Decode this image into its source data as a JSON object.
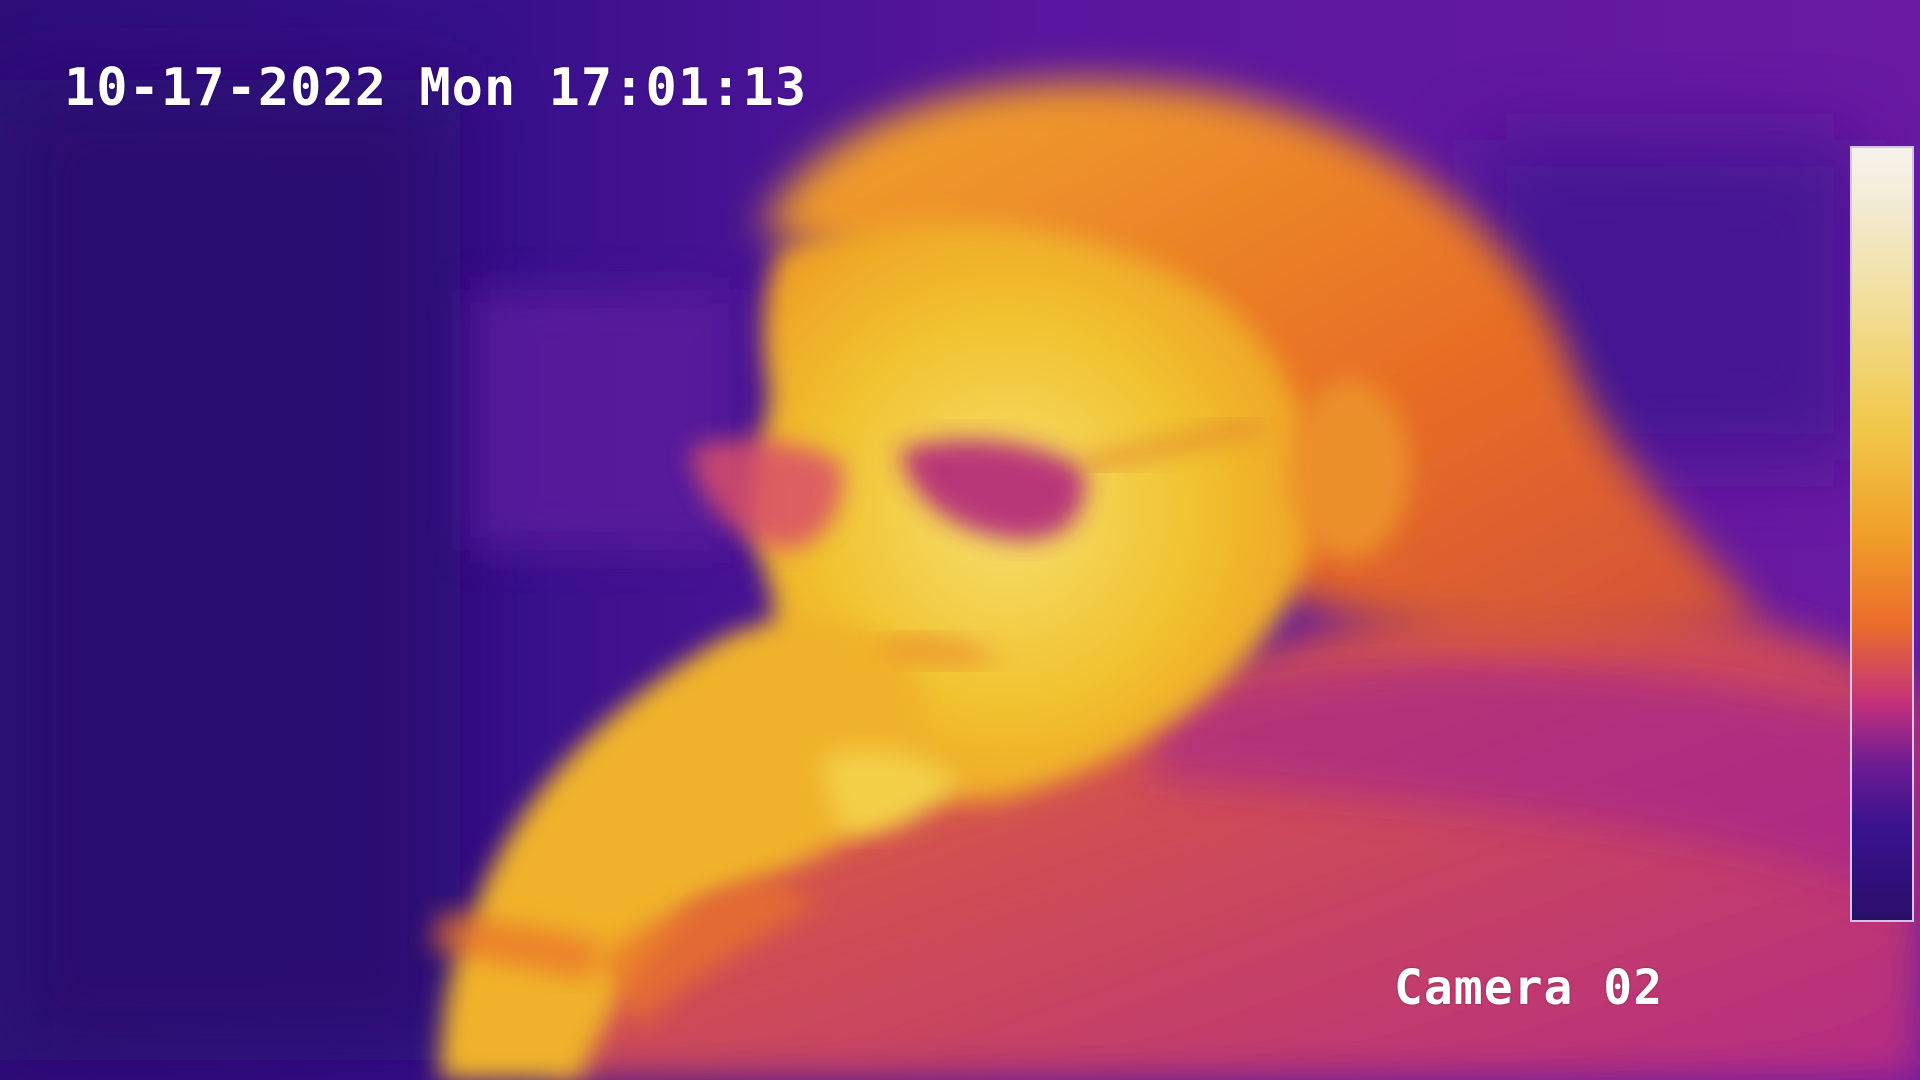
{
  "osd": {
    "timestamp": "10-17-2022 Mon 17:01:13",
    "camera_label": "Camera 02"
  },
  "palette": {
    "cold": "#2a0f7a",
    "cool": "#6a1aa6",
    "warm_magenta": "#b8278f",
    "orange": "#ea7a22",
    "yellow": "#f2c431",
    "hot": "#f7ebb6"
  },
  "icons": {
    "temperature_scale": "vertical-color-gradient"
  }
}
